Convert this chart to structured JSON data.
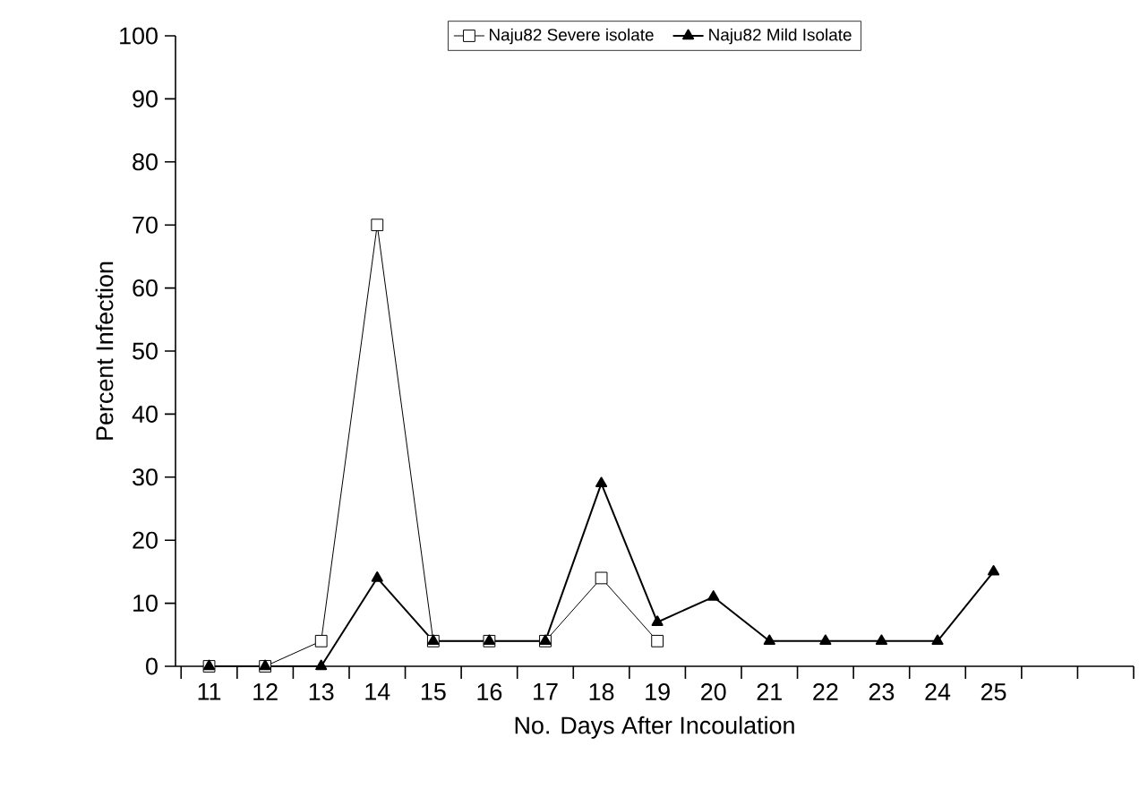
{
  "chart_data": {
    "type": "line",
    "xlabel": "No. Days After Incoulation",
    "ylabel": "Percent Infection",
    "categories": [
      "11",
      "12",
      "13",
      "14",
      "15",
      "16",
      "17",
      "18",
      "19",
      "20",
      "21",
      "22",
      "23",
      "24",
      "25",
      null,
      null
    ],
    "series": [
      {
        "name": "Naju82 Severe isolate",
        "color": "#000000",
        "marker": "square",
        "values": [
          0,
          0,
          4,
          70,
          4,
          4,
          4,
          14,
          4,
          null,
          null,
          null,
          null,
          null,
          null,
          null,
          null
        ]
      },
      {
        "name": "Naju82 Mild Isolate",
        "color": "#000000",
        "marker": "triangle",
        "values": [
          0,
          0,
          0,
          14,
          4,
          4,
          4,
          29,
          7,
          11,
          4,
          4,
          4,
          4,
          15,
          null,
          null
        ]
      }
    ],
    "ylim": [
      0,
      100
    ],
    "yticks": [
      0,
      10,
      20,
      30,
      40,
      50,
      60,
      70,
      80,
      90,
      100
    ],
    "grid": false,
    "legend": "top",
    "line_style": "solid"
  }
}
